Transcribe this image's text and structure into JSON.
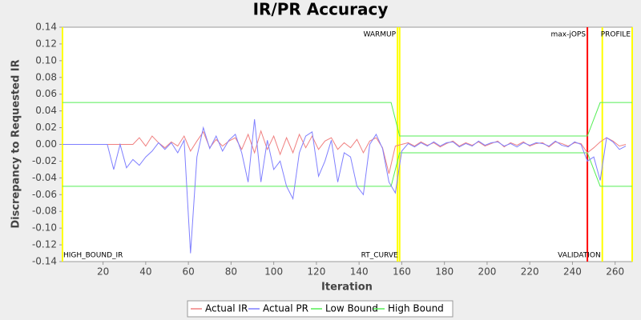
{
  "chart_data": {
    "type": "line",
    "title": "IR/PR Accuracy",
    "x_label": "Iteration",
    "y_label": "Discrepancy to Requested IR",
    "xlim": [
      1,
      268
    ],
    "ylim": [
      -0.14,
      0.14
    ],
    "xticks": [
      20,
      40,
      60,
      80,
      100,
      120,
      140,
      160,
      180,
      200,
      220,
      240,
      260
    ],
    "yticks": [
      0.14,
      0.12,
      {
        "value": 0.1,
        "label": "0.10"
      },
      0.08,
      0.06,
      0.04,
      0.02,
      {
        "value": 0,
        "label": "0.00"
      },
      -0.02,
      -0.04,
      -0.06,
      -0.08,
      {
        "value": -0.1,
        "label": "-0.10"
      },
      -0.12,
      -0.14
    ],
    "x": [
      1,
      4,
      7,
      10,
      13,
      16,
      19,
      22,
      25,
      28,
      31,
      34,
      37,
      40,
      43,
      46,
      49,
      52,
      55,
      58,
      61,
      64,
      67,
      70,
      73,
      76,
      79,
      82,
      85,
      88,
      91,
      94,
      97,
      100,
      103,
      106,
      109,
      112,
      115,
      118,
      121,
      124,
      127,
      130,
      133,
      136,
      139,
      142,
      145,
      148,
      151,
      154,
      157,
      160,
      163,
      166,
      169,
      172,
      175,
      178,
      181,
      184,
      187,
      190,
      193,
      196,
      199,
      202,
      205,
      208,
      211,
      214,
      217,
      220,
      223,
      226,
      229,
      232,
      235,
      238,
      241,
      244,
      247,
      250,
      253,
      256,
      259,
      262,
      265
    ],
    "series": [
      {
        "name": "Actual IR",
        "color": "#f08080",
        "values": [
          0,
          0,
          0,
          0,
          0,
          0,
          0,
          0,
          0,
          0,
          0,
          0,
          0.008,
          -0.002,
          0.01,
          0.002,
          -0.004,
          0.003,
          -0.002,
          0.01,
          -0.008,
          0.004,
          0.015,
          -0.004,
          0.006,
          -0.002,
          0.004,
          0.008,
          -0.006,
          0.012,
          -0.01,
          0.016,
          -0.006,
          0.01,
          -0.012,
          0.008,
          -0.01,
          0.012,
          -0.004,
          0.01,
          -0.006,
          0.004,
          0.008,
          -0.006,
          0.002,
          -0.004,
          0.006,
          -0.01,
          0.004,
          0.008,
          -0.004,
          -0.035,
          -0.002,
          0,
          0.002,
          -0.002,
          0.003,
          -0.001,
          0.002,
          -0.003,
          0.001,
          0.004,
          -0.002,
          0.002,
          -0.001,
          0.003,
          -0.002,
          0.001,
          0.004,
          -0.003,
          0.002,
          -0.001,
          0.003,
          -0.002,
          0.001,
          0.002,
          -0.003,
          0.003,
          0.001,
          -0.002,
          0.002,
          0.001,
          -0.01,
          -0.004,
          0.003,
          0.008,
          0.004,
          -0.002,
          0
        ]
      },
      {
        "name": "Actual PR",
        "color": "#7f7fff",
        "values": [
          0,
          0,
          0,
          0,
          0,
          0,
          0,
          0,
          -0.03,
          0,
          -0.028,
          -0.018,
          -0.025,
          -0.015,
          -0.008,
          0.002,
          -0.006,
          0.002,
          -0.01,
          0.005,
          -0.13,
          -0.015,
          0.02,
          -0.005,
          0.01,
          -0.008,
          0.005,
          0.012,
          -0.01,
          -0.045,
          0.03,
          -0.045,
          0.005,
          -0.03,
          -0.02,
          -0.05,
          -0.065,
          -0.01,
          0.01,
          0.015,
          -0.038,
          -0.02,
          0.005,
          -0.045,
          -0.01,
          -0.015,
          -0.05,
          -0.06,
          0,
          0.012,
          -0.005,
          -0.045,
          -0.058,
          -0.008,
          0.001,
          -0.003,
          0.002,
          -0.002,
          0.003,
          -0.002,
          0.002,
          0.003,
          -0.003,
          0.001,
          -0.002,
          0.004,
          -0.001,
          0.002,
          0.003,
          -0.002,
          0.001,
          -0.003,
          0.002,
          -0.001,
          0.002,
          0.001,
          -0.002,
          0.004,
          -0.001,
          -0.003,
          0.003,
          0,
          -0.02,
          -0.015,
          -0.043,
          0.008,
          0.003,
          -0.006,
          -0.002
        ]
      },
      {
        "name": "Low Bound",
        "color": "#55ee55",
        "x": [
          1,
          155,
          159,
          247,
          253,
          268
        ],
        "values": [
          -0.05,
          -0.05,
          -0.01,
          -0.01,
          -0.05,
          -0.05
        ]
      },
      {
        "name": "High Bound",
        "color": "#55ee55",
        "x": [
          1,
          155,
          159,
          247,
          253,
          268
        ],
        "values": [
          0.05,
          0.05,
          0.01,
          0.01,
          0.05,
          0.05
        ]
      }
    ],
    "markers": [
      {
        "x": 1,
        "label": "HIGH_BOUND_IR",
        "color": "#ffff00",
        "position": "bottom"
      },
      {
        "x": 158,
        "label": "WARMUP",
        "color": "#ffff00",
        "position": "top"
      },
      {
        "x": 159,
        "label": "RT_CURVE",
        "color": "#ffff00",
        "position": "bottom"
      },
      {
        "x": 247,
        "label": "max-jOPS",
        "color": "#ff0000",
        "position": "top"
      },
      {
        "x": 254,
        "label": "VALIDATION",
        "color": "#ffff00",
        "position": "bottom"
      },
      {
        "x": 268,
        "label": "PROFILE",
        "color": "#ffff00",
        "position": "top"
      }
    ]
  }
}
